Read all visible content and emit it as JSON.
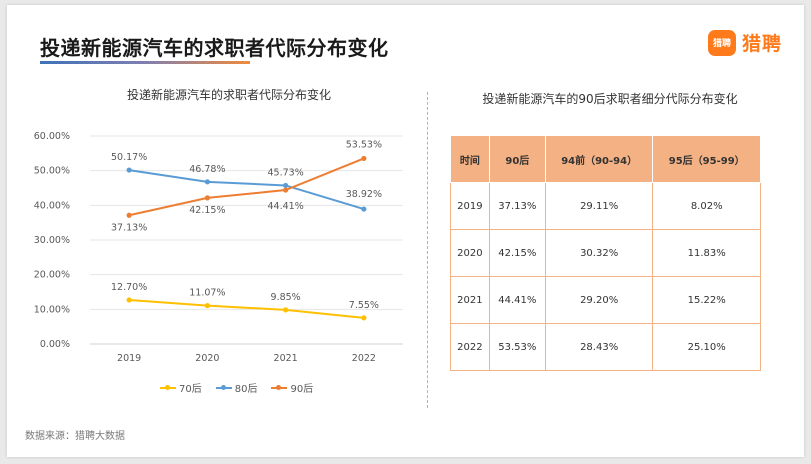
{
  "header": {
    "title": "投递新能源汽车的求职者代际分布变化",
    "brand": {
      "logo_text": "猎聘",
      "name": "猎聘",
      "color": "#ff7a1a"
    }
  },
  "chart_data": [
    {
      "type": "line",
      "title": "投递新能源汽车的求职者代际分布变化",
      "xlabel": "",
      "ylabel": "",
      "x": [
        "2019",
        "2020",
        "2021",
        "2022"
      ],
      "ylim": [
        0,
        60
      ],
      "y_ticks": [
        "0.00%",
        "10.00%",
        "20.00%",
        "30.00%",
        "40.00%",
        "50.00%",
        "60.00%"
      ],
      "grid": true,
      "legend_position": "bottom",
      "series": [
        {
          "name": "70后",
          "color": "#ffc000",
          "values": [
            12.7,
            11.07,
            9.85,
            7.55
          ],
          "labels": [
            "12.70%",
            "11.07%",
            "9.85%",
            "7.55%"
          ]
        },
        {
          "name": "80后",
          "color": "#5b9bd5",
          "values": [
            50.17,
            46.78,
            45.73,
            38.92
          ],
          "labels": [
            "50.17%",
            "46.78%",
            "45.73%",
            "38.92%"
          ]
        },
        {
          "name": "90后",
          "color": "#ed7d31",
          "values": [
            37.13,
            42.15,
            44.41,
            53.53
          ],
          "labels": [
            "37.13%",
            "42.15%",
            "44.41%",
            "53.53%"
          ]
        }
      ]
    },
    {
      "type": "table",
      "title": "投递新能源汽车的90后求职者细分代际分布变化",
      "columns": [
        "时间",
        "90后",
        "94前（90-94）",
        "95后（95-99）"
      ],
      "rows": [
        [
          "2019",
          "37.13%",
          "29.11%",
          "8.02%"
        ],
        [
          "2020",
          "42.15%",
          "30.32%",
          "11.83%"
        ],
        [
          "2021",
          "44.41%",
          "29.20%",
          "15.22%"
        ],
        [
          "2022",
          "53.53%",
          "28.43%",
          "25.10%"
        ]
      ]
    }
  ],
  "footer": {
    "source": "数据来源：猎聘大数据"
  }
}
